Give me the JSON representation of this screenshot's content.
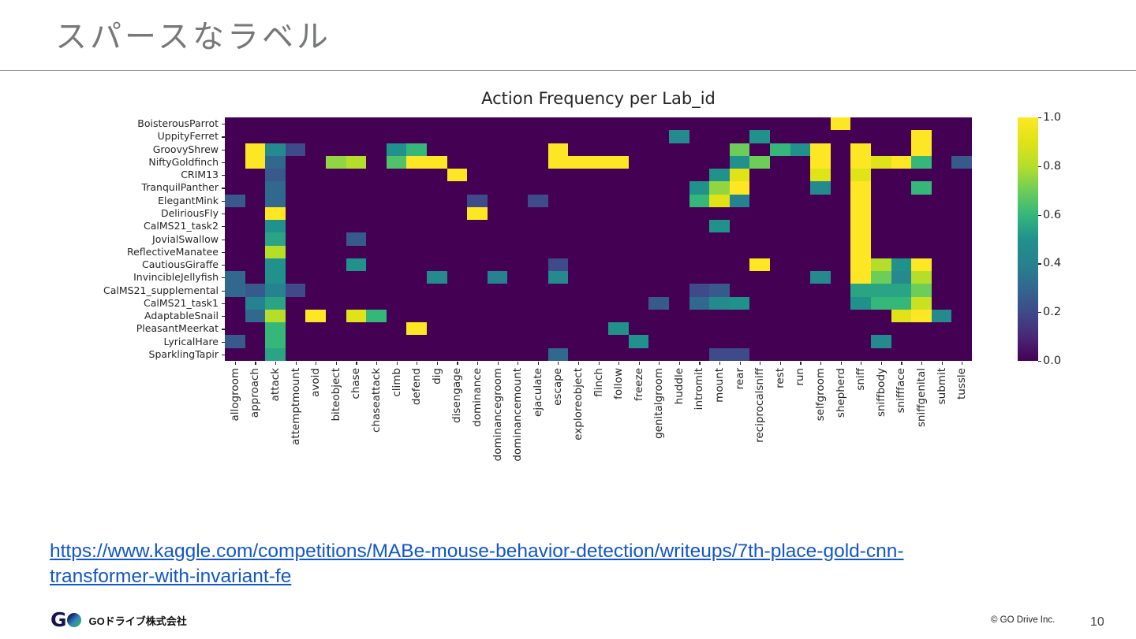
{
  "slide": {
    "title": "スパースなラベル",
    "link": {
      "lines": [
        "https://www.kaggle.com/competitions/MABe-mouse-behavior-detection/writeups/7th-place-gold-cnn-",
        "transformer-with-invariant-fe"
      ]
    },
    "footer": {
      "logo_letter": "G",
      "company": "GOドライブ株式会社",
      "copyright": "© GO Drive Inc.",
      "page_number": "10"
    }
  },
  "chart_data": {
    "type": "heatmap",
    "title": "Action Frequency per Lab_id",
    "xlabel": "",
    "ylabel": "",
    "vmin": 0,
    "vmax": 1,
    "colormap": "viridis",
    "colormap_stops": [
      "#440154",
      "#482878",
      "#3e4a89",
      "#31688e",
      "#26828e",
      "#21918c",
      "#35b779",
      "#6dcd59",
      "#b5de2b",
      "#dfe318",
      "#fde725"
    ],
    "colorbar_ticks": [
      0.0,
      0.2,
      0.4,
      0.6,
      0.8,
      1.0
    ],
    "x_categories": [
      "allogroom",
      "approach",
      "attack",
      "attemptmount",
      "avoid",
      "biteobject",
      "chase",
      "chaseattack",
      "climb",
      "defend",
      "dig",
      "disengage",
      "dominance",
      "dominancegroom",
      "dominancemount",
      "ejaculate",
      "escape",
      "exploreobject",
      "flinch",
      "follow",
      "freeze",
      "genitalgroom",
      "huddle",
      "intromit",
      "mount",
      "rear",
      "reciprocalsniff",
      "rest",
      "run",
      "selfgroom",
      "shepherd",
      "sniff",
      "sniffbody",
      "sniffface",
      "sniffgenital",
      "submit",
      "tussle"
    ],
    "y_categories": [
      "BoisterousParrot",
      "UppityFerret",
      "GroovyShrew",
      "NiftyGoldfinch",
      "CRIM13",
      "TranquilPanther",
      "ElegantMink",
      "DeliriousFly",
      "CalMS21_task2",
      "JovialSwallow",
      "ReflectiveManatee",
      "CautiousGiraffe",
      "InvincibleJellyfish",
      "CalMS21_supplemental",
      "CalMS21_task1",
      "AdaptableSnail",
      "PleasantMeerkat",
      "LyricalHare",
      "SparklingTapir"
    ],
    "matrix": [
      [
        0,
        0,
        0,
        0,
        0,
        0,
        0,
        0,
        0,
        0,
        0,
        0,
        0,
        0,
        0,
        0,
        0,
        0,
        0,
        0,
        0,
        0,
        0,
        0,
        0,
        0,
        0,
        0,
        0,
        0,
        1,
        0,
        0,
        0,
        0,
        0,
        0
      ],
      [
        0,
        0,
        0,
        0,
        0,
        0,
        0,
        0,
        0,
        0,
        0,
        0,
        0,
        0,
        0,
        0,
        0,
        0,
        0,
        0,
        0,
        0,
        0.45,
        0,
        0,
        0,
        0.5,
        0,
        0,
        0,
        0,
        0,
        0,
        0,
        1,
        0,
        0
      ],
      [
        0,
        1,
        0.45,
        0.2,
        0,
        0,
        0,
        0,
        0.5,
        0.6,
        0,
        0,
        0,
        0,
        0,
        0,
        1,
        0,
        0,
        0,
        0,
        0,
        0,
        0,
        0,
        0.7,
        0,
        0.6,
        0.5,
        1,
        0,
        1,
        0,
        0,
        1,
        0,
        0
      ],
      [
        0,
        1,
        0.3,
        0,
        0,
        0.75,
        0.8,
        0,
        0.65,
        1,
        1,
        0,
        0,
        0,
        0,
        0,
        1,
        1,
        1,
        1,
        0,
        0,
        0,
        0,
        0,
        0.5,
        0.7,
        0,
        0,
        1,
        0,
        1,
        0.9,
        1,
        0.6,
        0,
        0.25
      ],
      [
        0,
        0,
        0.25,
        0,
        0,
        0,
        0,
        0,
        0,
        0,
        0,
        1,
        0,
        0,
        0,
        0,
        0,
        0,
        0,
        0,
        0,
        0,
        0,
        0,
        0.5,
        0.9,
        0,
        0,
        0,
        0.9,
        0,
        0.9,
        0,
        0,
        0,
        0,
        0
      ],
      [
        0,
        0,
        0.3,
        0,
        0,
        0,
        0,
        0,
        0,
        0,
        0,
        0,
        0,
        0,
        0,
        0,
        0,
        0,
        0,
        0,
        0,
        0,
        0,
        0.5,
        0.75,
        1,
        0,
        0,
        0,
        0.45,
        0,
        1,
        0,
        0,
        0.6,
        0,
        0
      ],
      [
        0.25,
        0,
        0.3,
        0,
        0,
        0,
        0,
        0,
        0,
        0,
        0,
        0,
        0.2,
        0,
        0,
        0.2,
        0,
        0,
        0,
        0,
        0,
        0,
        0,
        0.6,
        0.9,
        0.4,
        0,
        0,
        0,
        0,
        0,
        1,
        0,
        0,
        0,
        0,
        0
      ],
      [
        0,
        0,
        1,
        0,
        0,
        0,
        0,
        0,
        0,
        0,
        0,
        0,
        1,
        0,
        0,
        0,
        0,
        0,
        0,
        0,
        0,
        0,
        0,
        0,
        0,
        0,
        0,
        0,
        0,
        0,
        0,
        1,
        0,
        0,
        0,
        0,
        0
      ],
      [
        0,
        0,
        0.5,
        0,
        0,
        0,
        0,
        0,
        0,
        0,
        0,
        0,
        0,
        0,
        0,
        0,
        0,
        0,
        0,
        0,
        0,
        0,
        0,
        0,
        0.5,
        0,
        0,
        0,
        0,
        0,
        0,
        1,
        0,
        0,
        0,
        0,
        0
      ],
      [
        0,
        0,
        0.55,
        0,
        0,
        0,
        0.25,
        0,
        0,
        0,
        0,
        0,
        0,
        0,
        0,
        0,
        0,
        0,
        0,
        0,
        0,
        0,
        0,
        0,
        0,
        0,
        0,
        0,
        0,
        0,
        0,
        1,
        0,
        0,
        0,
        0,
        0
      ],
      [
        0,
        0,
        0.8,
        0,
        0,
        0,
        0,
        0,
        0,
        0,
        0,
        0,
        0,
        0,
        0,
        0,
        0,
        0,
        0,
        0,
        0,
        0,
        0,
        0,
        0,
        0,
        0,
        0,
        0,
        0,
        0,
        1,
        0,
        0,
        0,
        0,
        0
      ],
      [
        0,
        0,
        0.5,
        0,
        0,
        0,
        0.5,
        0,
        0,
        0,
        0,
        0,
        0,
        0,
        0,
        0,
        0.2,
        0,
        0,
        0,
        0,
        0,
        0,
        0,
        0,
        0,
        1,
        0,
        0,
        0,
        0,
        1,
        0.8,
        0.5,
        1,
        0,
        0
      ],
      [
        0.3,
        0,
        0.5,
        0,
        0,
        0,
        0,
        0,
        0,
        0,
        0.45,
        0,
        0,
        0.4,
        0,
        0,
        0.45,
        0,
        0,
        0,
        0,
        0,
        0,
        0,
        0,
        0,
        0,
        0,
        0,
        0.45,
        0,
        1,
        0.7,
        0.45,
        0.8,
        0,
        0
      ],
      [
        0.3,
        0.25,
        0.4,
        0.2,
        0,
        0,
        0,
        0,
        0,
        0,
        0,
        0,
        0,
        0,
        0,
        0,
        0,
        0,
        0,
        0,
        0,
        0,
        0,
        0.2,
        0.25,
        0,
        0,
        0,
        0,
        0,
        0,
        0.55,
        0.55,
        0.55,
        0.7,
        0,
        0
      ],
      [
        0,
        0.4,
        0.55,
        0,
        0,
        0,
        0,
        0,
        0,
        0,
        0,
        0,
        0,
        0,
        0,
        0,
        0,
        0,
        0,
        0,
        0,
        0.25,
        0,
        0.3,
        0.45,
        0.5,
        0,
        0,
        0,
        0,
        0,
        0.5,
        0.6,
        0.6,
        0.85,
        0,
        0
      ],
      [
        0,
        0.3,
        0.8,
        0,
        1,
        0,
        0.9,
        0.6,
        0,
        0,
        0,
        0,
        0,
        0,
        0,
        0,
        0,
        0,
        0,
        0,
        0,
        0,
        0,
        0,
        0,
        0,
        0,
        0,
        0,
        0,
        0,
        0,
        0,
        0.9,
        1,
        0.45,
        0
      ],
      [
        0,
        0,
        0.6,
        0,
        0,
        0,
        0,
        0,
        0,
        1,
        0,
        0,
        0,
        0,
        0,
        0,
        0,
        0,
        0,
        0.5,
        0,
        0,
        0,
        0,
        0,
        0,
        0,
        0,
        0,
        0,
        0,
        0,
        0,
        0,
        0,
        0,
        0
      ],
      [
        0.25,
        0,
        0.6,
        0,
        0,
        0,
        0,
        0,
        0,
        0,
        0,
        0,
        0,
        0,
        0,
        0,
        0,
        0,
        0,
        0,
        0.5,
        0,
        0,
        0,
        0,
        0,
        0,
        0,
        0,
        0,
        0,
        0,
        0.45,
        0,
        0,
        0,
        0
      ],
      [
        0,
        0,
        0.55,
        0,
        0,
        0,
        0,
        0,
        0,
        0,
        0,
        0,
        0,
        0,
        0,
        0,
        0.3,
        0,
        0,
        0,
        0,
        0,
        0,
        0,
        0.2,
        0.2,
        0,
        0,
        0,
        0,
        0,
        0,
        0,
        0,
        0,
        0,
        0
      ]
    ]
  }
}
